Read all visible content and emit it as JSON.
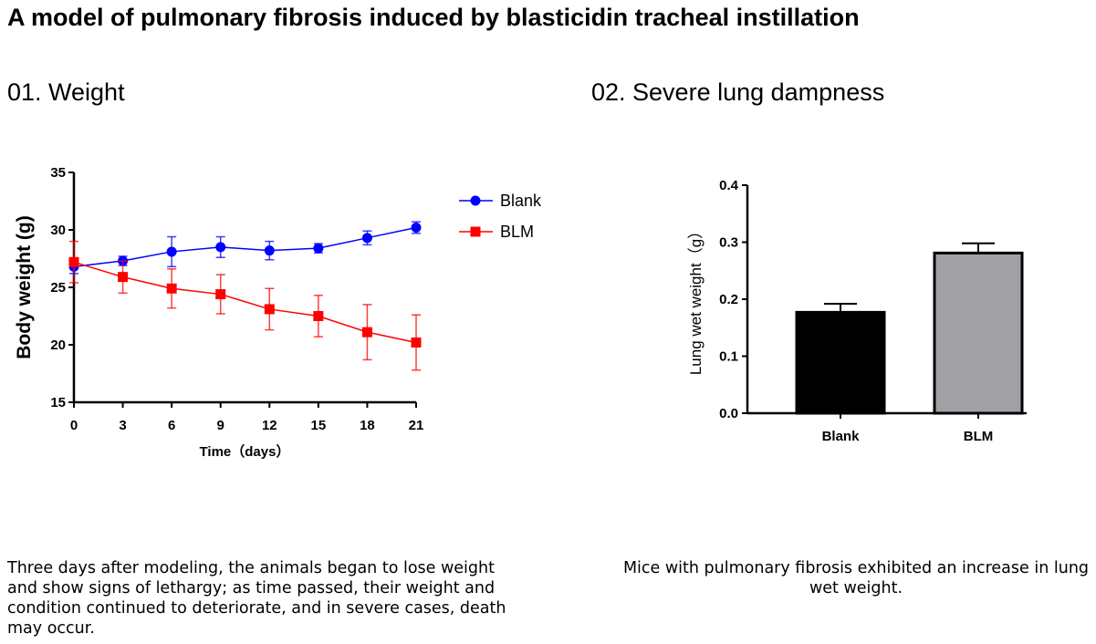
{
  "title": "A model of pulmonary fibrosis induced by blasticidin tracheal instillation",
  "sections": [
    {
      "heading": "01. Weight",
      "description": "Three days after modeling, the animals began to lose weight and show signs of lethargy; as time passed, their weight and condition continued to deteriorate, and in severe cases, death may occur."
    },
    {
      "heading": "02. Severe lung dampness",
      "description": "Mice with pulmonary fibrosis exhibited an increase in lung wet weight."
    }
  ],
  "chart_data": [
    {
      "type": "line",
      "title": "",
      "xlabel": "Time（days）",
      "ylabel": "Body weight (g)",
      "x": [
        0,
        3,
        6,
        9,
        12,
        15,
        18,
        21
      ],
      "xticks": [
        "0",
        "3",
        "6",
        "9",
        "12",
        "15",
        "18",
        "21"
      ],
      "yticks": [
        "15",
        "20",
        "25",
        "30",
        "35"
      ],
      "ylim": [
        15,
        35
      ],
      "xlim": [
        0,
        21
      ],
      "legend": "top-right",
      "grid": false,
      "series": [
        {
          "name": "Blank",
          "color": "#0000ff",
          "marker": "circle",
          "values": [
            26.8,
            27.3,
            28.1,
            28.5,
            28.2,
            28.4,
            29.3,
            30.2
          ],
          "errors": [
            0.6,
            0.4,
            1.3,
            0.9,
            0.8,
            0.4,
            0.6,
            0.5
          ]
        },
        {
          "name": "BLM",
          "color": "#ff0000",
          "marker": "square",
          "values": [
            27.2,
            25.9,
            24.9,
            24.4,
            23.1,
            22.5,
            21.1,
            20.2
          ],
          "errors": [
            1.8,
            1.4,
            1.7,
            1.7,
            1.8,
            1.8,
            2.4,
            2.4
          ]
        }
      ]
    },
    {
      "type": "bar",
      "title": "",
      "xlabel": "",
      "ylabel": "Lung wet weight（g）",
      "categories": [
        "Blank",
        "BLM"
      ],
      "values": [
        0.177,
        0.281
      ],
      "errors": [
        0.015,
        0.017
      ],
      "colors": [
        "#000000",
        "#a1a0a5"
      ],
      "yticks": [
        "0.0",
        "0.1",
        "0.2",
        "0.3",
        "0.4"
      ],
      "ylim": [
        0,
        0.4
      ],
      "grid": false
    }
  ]
}
